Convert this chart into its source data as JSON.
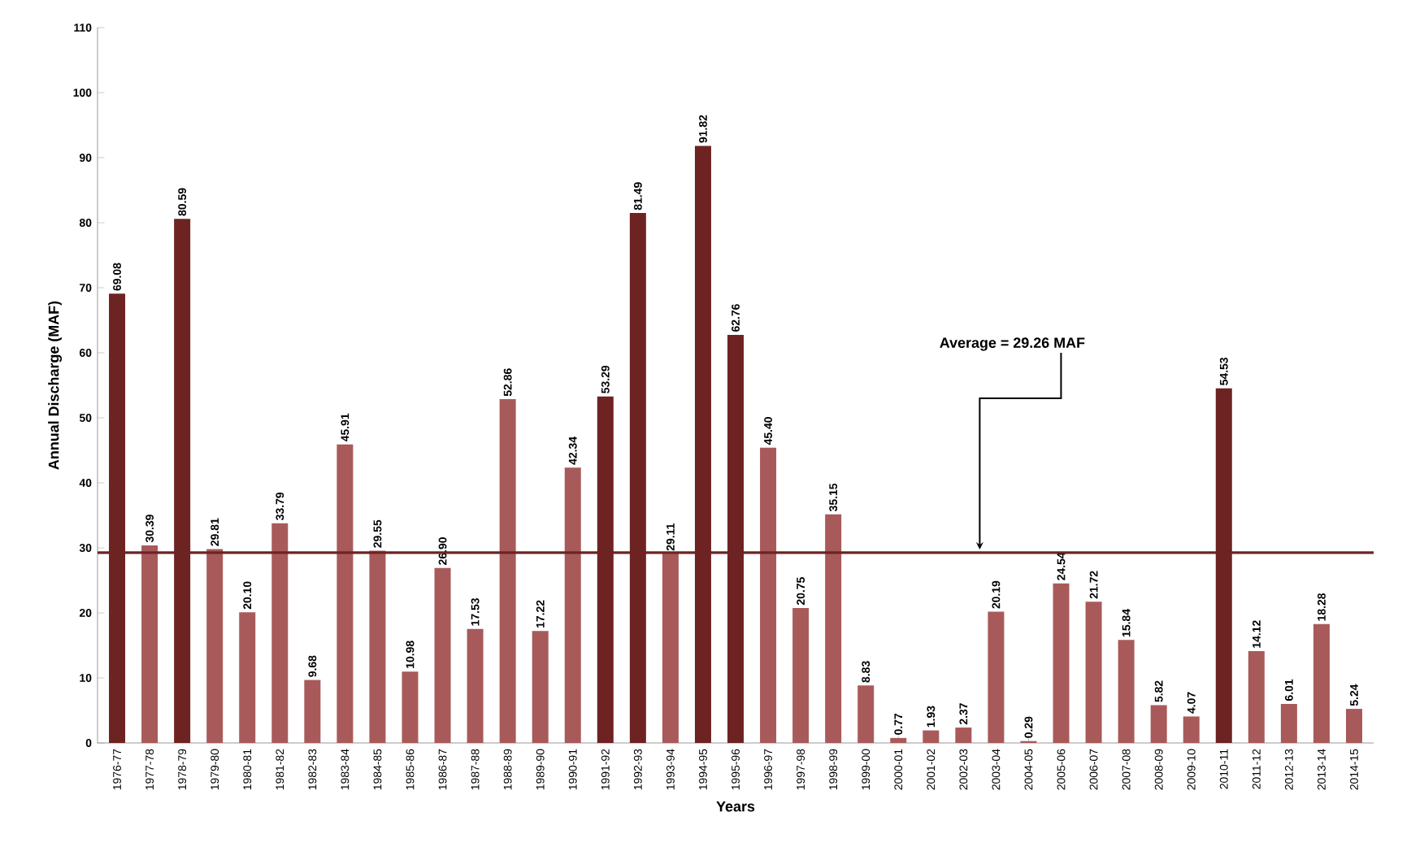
{
  "chart_data": {
    "type": "bar",
    "xlabel": "Years",
    "ylabel": "Annual Discharge (MAF)",
    "categories": [
      "1976-77",
      "1977-78",
      "1978-79",
      "1979-80",
      "1980-81",
      "1981-82",
      "1982-83",
      "1983-84",
      "1984-85",
      "1985-86",
      "1986-87",
      "1987-88",
      "1988-89",
      "1989-90",
      "1990-91",
      "1991-92",
      "1992-93",
      "1993-94",
      "1994-95",
      "1995-96",
      "1996-97",
      "1997-98",
      "1998-99",
      "1999-00",
      "2000-01",
      "2001-02",
      "2002-03",
      "2003-04",
      "2004-05",
      "2005-06",
      "2006-07",
      "2007-08",
      "2008-09",
      "2009-10",
      "2010-11",
      "2011-12",
      "2012-13",
      "2013-14",
      "2014-15"
    ],
    "values": [
      69.08,
      30.39,
      80.59,
      29.81,
      20.1,
      33.79,
      9.68,
      45.91,
      29.55,
      10.98,
      26.9,
      17.53,
      52.86,
      17.22,
      42.34,
      53.29,
      81.49,
      29.11,
      91.82,
      62.76,
      45.4,
      20.75,
      35.15,
      8.83,
      0.77,
      1.93,
      2.37,
      20.19,
      0.29,
      24.54,
      21.72,
      15.84,
      5.82,
      4.07,
      54.53,
      14.12,
      6.01,
      18.28,
      5.24
    ],
    "value_labels": [
      "69.08",
      "30.39",
      "80.59",
      "29.81",
      "20.10",
      "33.79",
      "9.68",
      "45.91",
      "29.55",
      "10.98",
      "26.90",
      "17.53",
      "52.86",
      "17.22",
      "42.34",
      "53.29",
      "81.49",
      "29.11",
      "91.82",
      "62.76",
      "45.40",
      "20.75",
      "35.15",
      "8.83",
      "0.77",
      "1.93",
      "2.37",
      "20.19",
      "0.29",
      "24.54",
      "21.72",
      "15.84",
      "5.82",
      "4.07",
      "54.53",
      "14.12",
      "6.01",
      "18.28",
      "5.24"
    ],
    "colors": [
      "#6e2323",
      "#a85a5a",
      "#6e2323",
      "#a85a5a",
      "#a85a5a",
      "#a85a5a",
      "#a85a5a",
      "#a85a5a",
      "#a85a5a",
      "#a85a5a",
      "#a85a5a",
      "#a85a5a",
      "#a85a5a",
      "#a85a5a",
      "#a85a5a",
      "#6e2323",
      "#6e2323",
      "#a85a5a",
      "#6e2323",
      "#6e2323",
      "#a85a5a",
      "#a85a5a",
      "#a85a5a",
      "#a85a5a",
      "#a85a5a",
      "#a85a5a",
      "#a85a5a",
      "#a85a5a",
      "#a85a5a",
      "#a85a5a",
      "#a85a5a",
      "#a85a5a",
      "#a85a5a",
      "#a85a5a",
      "#6e2323",
      "#a85a5a",
      "#a85a5a",
      "#a85a5a",
      "#a85a5a"
    ],
    "ylim": [
      0,
      110
    ],
    "yticks": [
      0,
      10,
      20,
      30,
      40,
      50,
      60,
      70,
      80,
      90,
      100,
      110
    ],
    "grid": false,
    "ref_lines": [
      {
        "axis": "y",
        "value": 29.26,
        "label": "Average = 29.26 MAF",
        "color": "#6e2323"
      }
    ]
  }
}
